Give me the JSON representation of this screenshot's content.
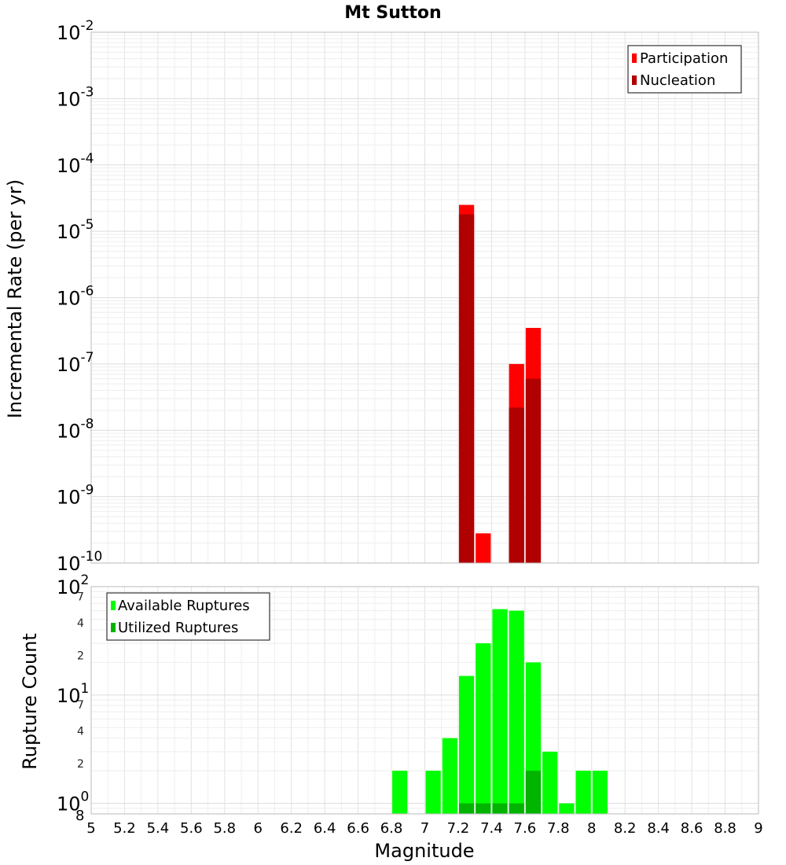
{
  "chart_data": [
    {
      "type": "bar",
      "title": "Mt Sutton",
      "xlabel": "",
      "ylabel": "Incremental Rate (per yr)",
      "y_scale": "log",
      "ylim_exponents": [
        -10,
        -2
      ],
      "xlim": [
        5,
        9
      ],
      "bar_width": 0.1,
      "grid": true,
      "legend_position": "top-right",
      "y_tick_exponents": [
        -2,
        -3,
        -4,
        -5,
        -6,
        -7,
        -8,
        -9,
        -10
      ],
      "series": [
        {
          "name": "Participation",
          "color": "#ff0000",
          "points": [
            {
              "x": 7.25,
              "y": 2.5e-05
            },
            {
              "x": 7.35,
              "y": 2.8e-10
            },
            {
              "x": 7.55,
              "y": 1e-07
            },
            {
              "x": 7.65,
              "y": 3.5e-07
            }
          ]
        },
        {
          "name": "Nucleation",
          "color": "#b00000",
          "points": [
            {
              "x": 7.25,
              "y": 1.8e-05
            },
            {
              "x": 7.55,
              "y": 2.2e-08
            },
            {
              "x": 7.65,
              "y": 6e-08
            }
          ]
        }
      ]
    },
    {
      "type": "bar",
      "title": "",
      "xlabel": "Magnitude",
      "ylabel": "Rupture Count",
      "y_scale": "log",
      "ylim": [
        0.8,
        100
      ],
      "xlim": [
        5,
        9
      ],
      "bar_width": 0.1,
      "grid": true,
      "legend_position": "top-left",
      "x_ticks": [
        "5",
        "5.2",
        "5.4",
        "5.6",
        "5.8",
        "6",
        "6.2",
        "6.4",
        "6.6",
        "6.8",
        "7",
        "7.2",
        "7.4",
        "7.6",
        "7.8",
        "8",
        "8.2",
        "8.4",
        "8.6",
        "8.8",
        "9"
      ],
      "y_major_ticks": [
        {
          "value": 100,
          "base": "10",
          "exp": "2"
        },
        {
          "value": 10,
          "base": "10",
          "exp": "1"
        },
        {
          "value": 1,
          "base": "10",
          "exp": "0"
        }
      ],
      "y_minor_ticks": [
        {
          "value": 70,
          "label": "7"
        },
        {
          "value": 40,
          "label": "4"
        },
        {
          "value": 20,
          "label": "2"
        },
        {
          "value": 7,
          "label": "7"
        },
        {
          "value": 4,
          "label": "4"
        },
        {
          "value": 2,
          "label": "2"
        },
        {
          "value": 0.8,
          "label": "8"
        }
      ],
      "series": [
        {
          "name": "Available Ruptures",
          "color": "#00ff00",
          "points": [
            {
              "x": 6.85,
              "y": 2
            },
            {
              "x": 7.05,
              "y": 2
            },
            {
              "x": 7.15,
              "y": 4
            },
            {
              "x": 7.25,
              "y": 15
            },
            {
              "x": 7.35,
              "y": 30
            },
            {
              "x": 7.45,
              "y": 62
            },
            {
              "x": 7.55,
              "y": 60
            },
            {
              "x": 7.65,
              "y": 20
            },
            {
              "x": 7.75,
              "y": 3
            },
            {
              "x": 7.85,
              "y": 1
            },
            {
              "x": 7.95,
              "y": 2
            },
            {
              "x": 8.05,
              "y": 2
            }
          ]
        },
        {
          "name": "Utilized Ruptures",
          "color": "#00b400",
          "points": [
            {
              "x": 7.25,
              "y": 1
            },
            {
              "x": 7.35,
              "y": 1
            },
            {
              "x": 7.45,
              "y": 1
            },
            {
              "x": 7.55,
              "y": 1
            },
            {
              "x": 7.65,
              "y": 2
            }
          ]
        }
      ]
    }
  ]
}
